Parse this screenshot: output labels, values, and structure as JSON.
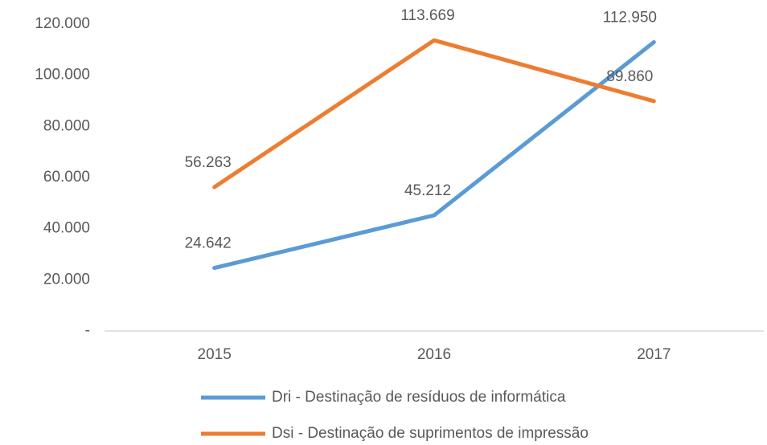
{
  "chart_data": {
    "type": "line",
    "categories": [
      "2015",
      "2016",
      "2017"
    ],
    "series": [
      {
        "name": "Dri - Destinação de resíduos de informática",
        "color": "#5b9bd5",
        "values": [
          24642,
          45212,
          112950
        ],
        "value_labels": [
          "24.642",
          "45.212",
          "112.950"
        ]
      },
      {
        "name": "Dsi - Destinação de suprimentos de impressão",
        "color": "#ed7d31",
        "values": [
          56263,
          113669,
          89860
        ],
        "value_labels": [
          "56.263",
          "113.669",
          "89.860"
        ]
      }
    ],
    "ylim": [
      0,
      120000
    ],
    "yticks": [
      {
        "value": 0,
        "label": "-"
      },
      {
        "value": 20000,
        "label": "20.000"
      },
      {
        "value": 40000,
        "label": "40.000"
      },
      {
        "value": 60000,
        "label": "60.000"
      },
      {
        "value": 80000,
        "label": "80.000"
      },
      {
        "value": 100000,
        "label": "100.000"
      },
      {
        "value": 120000,
        "label": "120.000"
      }
    ],
    "grid": false,
    "legend": "bottom"
  }
}
